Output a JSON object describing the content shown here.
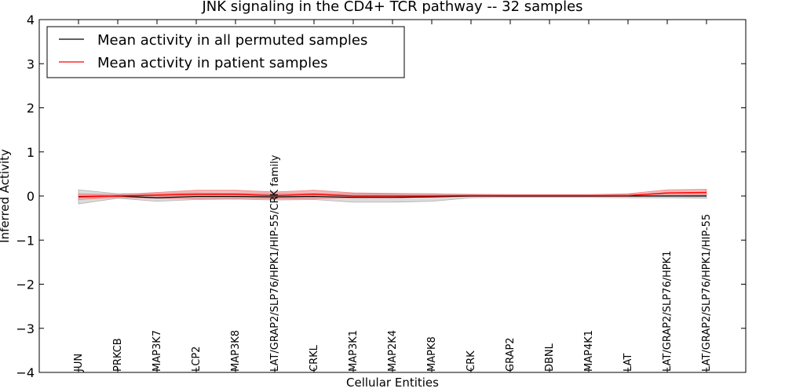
{
  "chart_data": {
    "type": "line",
    "title": "JNK signaling in the CD4+ TCR pathway -- 32 samples",
    "xlabel": "Cellular Entities",
    "ylabel": "Inferred Activity",
    "ylim": [
      -4,
      4
    ],
    "yticks": [
      -4,
      -3,
      -2,
      -1,
      0,
      1,
      2,
      3,
      4
    ],
    "ytick_labels": [
      "−4",
      "−3",
      "−2",
      "−1",
      "0",
      "1",
      "2",
      "3",
      "4"
    ],
    "grid": false,
    "legend_position": "top-left",
    "categories": [
      "JUN",
      "PRKCB",
      "MAP3K7",
      "LCP2",
      "MAP3K8",
      "LAT/GRAP2/SLP76/HPK1/HIP-55/CRK family",
      "CRKL",
      "MAP3K1",
      "MAP2K4",
      "MAPK8",
      "CRK",
      "GRAP2",
      "DBNL",
      "MAP4K1",
      "LAT",
      "LAT/GRAP2/SLP76/HPK1",
      "LAT/GRAP2/SLP76/HPK1/HIP-55"
    ],
    "series": [
      {
        "name": "Mean activity in all permuted samples",
        "color": "#000000",
        "band_color": "#b0b0b0",
        "values": [
          -0.01,
          0.0,
          -0.04,
          -0.01,
          -0.01,
          -0.02,
          -0.01,
          -0.03,
          -0.03,
          -0.02,
          0.0,
          0.0,
          0.0,
          0.0,
          0.0,
          0.0,
          0.0
        ],
        "lower": [
          -0.18,
          -0.05,
          -0.12,
          -0.08,
          -0.07,
          -0.09,
          -0.08,
          -0.14,
          -0.14,
          -0.12,
          -0.04,
          -0.03,
          -0.03,
          -0.03,
          -0.04,
          -0.04,
          -0.05
        ],
        "upper": [
          0.14,
          0.05,
          0.06,
          0.07,
          0.06,
          0.06,
          0.06,
          0.05,
          0.05,
          0.05,
          0.04,
          0.03,
          0.03,
          0.03,
          0.04,
          0.04,
          0.04
        ]
      },
      {
        "name": "Mean activity in patient samples",
        "color": "#ff0000",
        "band_color": "#f08080",
        "values": [
          -0.02,
          0.0,
          0.02,
          0.04,
          0.04,
          0.01,
          0.04,
          0.0,
          0.0,
          0.0,
          0.01,
          0.01,
          0.01,
          0.01,
          0.01,
          0.07,
          0.08
        ],
        "lower": [
          -0.08,
          -0.03,
          -0.05,
          -0.06,
          -0.05,
          -0.06,
          -0.06,
          -0.04,
          -0.04,
          -0.02,
          -0.01,
          -0.01,
          -0.01,
          -0.01,
          -0.01,
          0.0,
          0.01
        ],
        "upper": [
          0.05,
          0.03,
          0.08,
          0.13,
          0.13,
          0.09,
          0.13,
          0.07,
          0.06,
          0.05,
          0.03,
          0.03,
          0.03,
          0.03,
          0.05,
          0.14,
          0.15
        ]
      }
    ]
  }
}
